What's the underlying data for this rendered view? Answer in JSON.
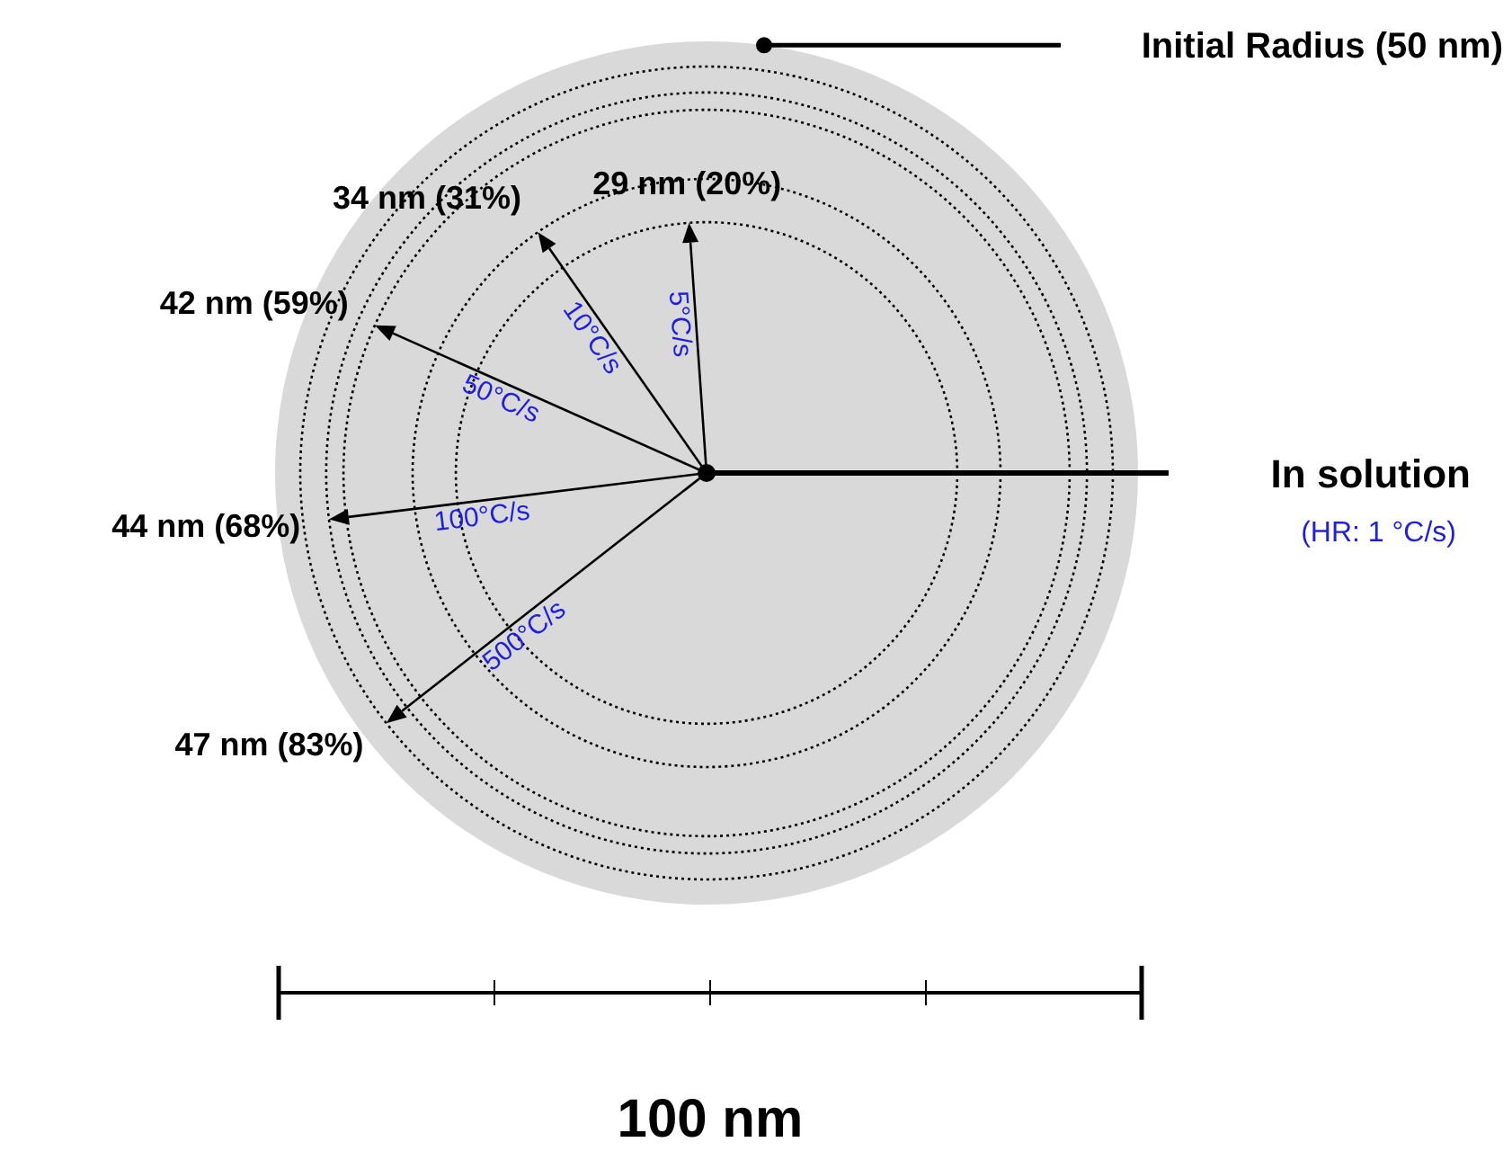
{
  "chart_data": {
    "type": "other",
    "categories": [
      "5°C/s",
      "10°C/s",
      "50°C/s",
      "100°C/s",
      "500°C/s"
    ],
    "values": [
      29,
      34,
      42,
      44,
      47
    ],
    "value_labels": [
      "29 nm (20%)",
      "34 nm (31%)",
      "42 nm (59%)",
      "44 nm (68%)",
      "47 nm (83%)"
    ],
    "annotations": [
      "Initial Radius (50 nm)",
      "In solution",
      "(HR: 1 °C/s)",
      "100 nm"
    ]
  }
}
